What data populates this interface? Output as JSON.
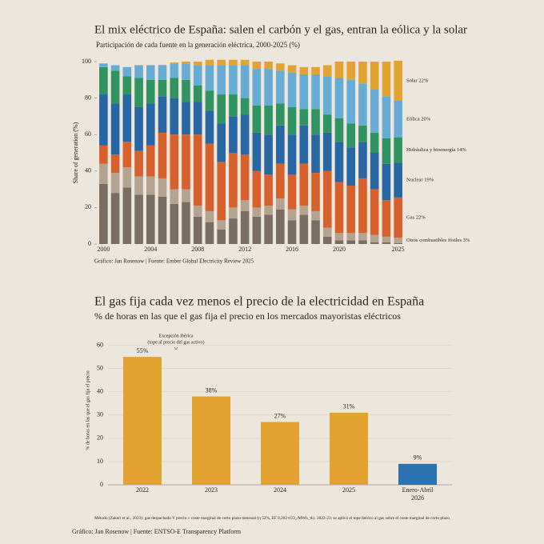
{
  "chart_data": [
    {
      "type": "stacked_bar",
      "title": "El mix eléctrico de España: salen el carbón y el gas, entran la eólica y la solar",
      "subtitle": "Participación de cada fuente en la generación eléctrica, 2000-2025 (%)",
      "ylabel": "Share of generation (%)",
      "source": "Gráfico: Jan Rosenow | Fuente: Ember Global Electricity Review 2025",
      "categories": [
        2000,
        2001,
        2002,
        2003,
        2004,
        2005,
        2006,
        2007,
        2008,
        2009,
        2010,
        2011,
        2012,
        2013,
        2014,
        2015,
        2016,
        2017,
        2018,
        2019,
        2020,
        2021,
        2022,
        2023,
        2024,
        2025
      ],
      "xticks": [
        2000,
        2004,
        2008,
        2012,
        2016,
        2020,
        2025
      ],
      "ylim": [
        0,
        100
      ],
      "yticks": [
        0,
        20,
        40,
        60,
        80,
        100
      ],
      "series": [
        {
          "color": "#7a6e63",
          "values": [
            33,
            28,
            31,
            27,
            27,
            26,
            22,
            23,
            15,
            12,
            8,
            14,
            18,
            15,
            16,
            19,
            13,
            16,
            13,
            4,
            2,
            2,
            2,
            1,
            1,
            0.5
          ]
        },
        {
          "name": "Otros combustibles fósiles 3%",
          "color": "#b3a38f",
          "values": [
            11,
            11,
            11,
            10,
            10,
            10,
            8,
            7,
            6,
            6,
            5,
            6,
            6,
            5,
            5,
            6,
            6,
            5,
            5,
            5,
            4,
            4,
            4,
            4,
            3,
            3
          ]
        },
        {
          "name": "Gas 22%",
          "color": "#d7612c",
          "values": [
            10,
            10,
            14,
            14,
            17,
            25,
            30,
            30,
            39,
            37,
            32,
            30,
            25,
            20,
            17,
            19,
            19,
            23,
            21,
            31,
            28,
            26,
            30,
            25,
            20,
            22
          ]
        },
        {
          "name": "Nuclear 19%",
          "color": "#2866a4",
          "values": [
            28,
            28,
            26,
            24,
            23,
            20,
            20,
            18,
            18,
            18,
            21,
            20,
            22,
            21,
            22,
            21,
            22,
            21,
            21,
            21,
            22,
            21,
            20,
            20,
            20,
            19
          ]
        },
        {
          "name": "Hidráulica y bioenergía 14%",
          "color": "#2f9462",
          "values": [
            15,
            18,
            10,
            16,
            13,
            9,
            11,
            12,
            9,
            11,
            16,
            12,
            9,
            15,
            16,
            12,
            15,
            9,
            14,
            10,
            13,
            13,
            9,
            11,
            14,
            14
          ]
        },
        {
          "name": "Eólica 20%",
          "color": "#66acd5",
          "values": [
            2,
            3,
            5,
            7,
            8,
            8,
            8,
            9,
            11,
            14,
            16,
            16,
            18,
            20,
            20,
            18,
            19,
            19,
            19,
            21,
            22,
            24,
            23,
            24,
            23,
            20
          ]
        },
        {
          "name": "Solar 22%",
          "color": "#e2a331",
          "values": [
            0,
            0,
            0,
            0.1,
            0.1,
            0.2,
            0.5,
            1,
            2,
            3,
            3,
            3,
            3,
            4,
            4,
            4,
            4,
            4,
            4,
            6,
            9,
            10,
            12,
            15,
            19,
            22
          ]
        }
      ]
    },
    {
      "type": "bar",
      "title": "El gas fija cada vez menos el precio de la electricidad en España",
      "subtitle": "% de horas en las que el gas fija el precio en los mercados mayoristas eléctricos",
      "ylabel": "% de horas en las que el gas fija el precio",
      "annotation": [
        "Excepción ibérica",
        "(tope al precio del gas activo)"
      ],
      "note": "Método (Zakeri et al., 2023): gas despachado Y precio ≥ coste marginal de corto plazo mensual (η 52%, EF 0,202 tCO₂/MWh_th). 2022-23: se aplicó el tope ibérico al gas sobre el coste marginal de corto plazo.",
      "source": "Gráfico: Jan Rosenow | Fuente: ENTSO-E Transparency Platform",
      "categories": [
        "2022",
        "2023",
        "2024",
        "2025",
        "Enero-Abril 2026"
      ],
      "values": [
        55,
        38,
        27,
        31,
        9
      ],
      "value_labels": [
        "55%",
        "38%",
        "27%",
        "31%",
        "9%"
      ],
      "colors": [
        "#e2a331",
        "#e2a331",
        "#e2a331",
        "#e2a331",
        "#2a72b0"
      ],
      "ylim": [
        0,
        64
      ],
      "yticks": [
        0,
        10,
        20,
        30,
        40,
        50,
        60
      ],
      "grid": true
    }
  ]
}
